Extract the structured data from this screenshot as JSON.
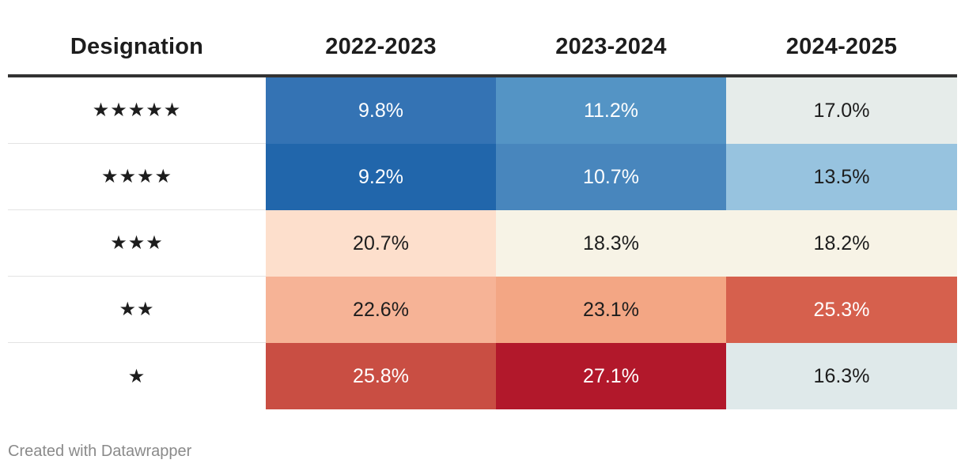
{
  "chart_data": {
    "type": "table",
    "columns": [
      "Designation",
      "2022-2023",
      "2023-2024",
      "2024-2025"
    ],
    "rows": [
      {
        "label": "★★★★★",
        "values": [
          "9.8%",
          "11.2%",
          "17.0%"
        ],
        "colors": [
          "#3473b4",
          "#5494c5",
          "#e6ecea"
        ],
        "text_colors": [
          "#ffffff",
          "#ffffff",
          "#1d1d1d"
        ]
      },
      {
        "label": "★★★★",
        "values": [
          "9.2%",
          "10.7%",
          "13.5%"
        ],
        "colors": [
          "#2166ab",
          "#4886bd",
          "#97c3df"
        ],
        "text_colors": [
          "#ffffff",
          "#ffffff",
          "#1d1d1d"
        ]
      },
      {
        "label": "★★★",
        "values": [
          "20.7%",
          "18.3%",
          "18.2%"
        ],
        "colors": [
          "#fddfcc",
          "#f7f3e6",
          "#f7f3e6"
        ],
        "text_colors": [
          "#1d1d1d",
          "#1d1d1d",
          "#1d1d1d"
        ]
      },
      {
        "label": "★★",
        "values": [
          "22.6%",
          "23.1%",
          "25.3%"
        ],
        "colors": [
          "#f6b396",
          "#f3a684",
          "#d6604d"
        ],
        "text_colors": [
          "#1d1d1d",
          "#1d1d1d",
          "#ffffff"
        ]
      },
      {
        "label": "★",
        "values": [
          "25.8%",
          "27.1%",
          "16.3%"
        ],
        "colors": [
          "#c94e43",
          "#b2182b",
          "#dfe9ea"
        ],
        "text_colors": [
          "#ffffff",
          "#ffffff",
          "#1d1d1d"
        ]
      }
    ]
  },
  "footer": {
    "credit": "Created with Datawrapper"
  }
}
